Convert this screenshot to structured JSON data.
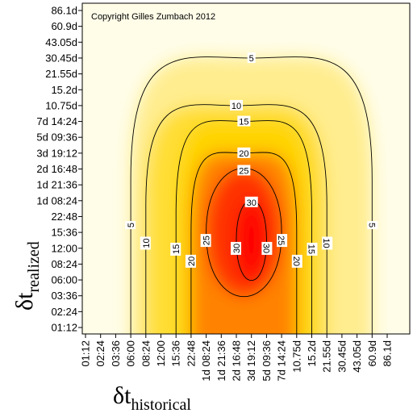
{
  "chart_data": {
    "type": "heatmap",
    "subtype": "contour-filled",
    "copyright": "Copyright Gilles Zumbach 2012",
    "xlabel": {
      "symbol": "δt",
      "subscript": "historical"
    },
    "ylabel": {
      "symbol": "δt",
      "subscript": "realized"
    },
    "x_ticks": [
      "01:12",
      "02:24",
      "03:36",
      "06:00",
      "08:24",
      "12:00",
      "15:36",
      "22:48",
      "1d 08:24",
      "1d 21:36",
      "2d 16:48",
      "3d 19:12",
      "5d 09:36",
      "7d 14:24",
      "10.75d",
      "15.2d",
      "21.55d",
      "30.45d",
      "43.05d",
      "60.9d",
      "86.1d"
    ],
    "y_ticks": [
      "01:12",
      "02:24",
      "03:36",
      "06:00",
      "08:24",
      "12:00",
      "15:36",
      "22:48",
      "1d 08:24",
      "1d 21:36",
      "2d 16:48",
      "3d 19:12",
      "5d 09:36",
      "7d 14:24",
      "10.75d",
      "15.2d",
      "21.55d",
      "30.45d",
      "43.05d",
      "60.9d",
      "86.1d"
    ],
    "contour_levels": [
      5,
      10,
      15,
      20,
      25,
      30
    ],
    "color_scale": {
      "low": "#fffde8",
      "mid": "#ffd400",
      "high": "#ff0000"
    },
    "contours": [
      {
        "level": 5,
        "x_range": [
          "06:00",
          "60.9d"
        ],
        "y_range": [
          "01:12",
          "30.45d"
        ]
      },
      {
        "level": 10,
        "x_range": [
          "08:24",
          "21.55d"
        ],
        "y_range": [
          "01:12",
          "10.75d"
        ]
      },
      {
        "level": 15,
        "x_range": [
          "15:36",
          "15.2d"
        ],
        "y_range": [
          "01:12",
          "7d 14:24"
        ]
      },
      {
        "level": 20,
        "x_range": [
          "22:48",
          "10.75d"
        ],
        "y_range": [
          "01:12",
          "3d 19:12"
        ]
      },
      {
        "level": 25,
        "x_range": [
          "1d 08:24",
          "7d 14:24"
        ],
        "y_range": [
          "03:36",
          "2d 16:48"
        ]
      },
      {
        "level": 30,
        "x_range": [
          "2d 16:48",
          "5d 09:36"
        ],
        "y_range": [
          "06:00",
          "1d 08:24"
        ]
      }
    ],
    "grid": false,
    "legend": "none"
  }
}
